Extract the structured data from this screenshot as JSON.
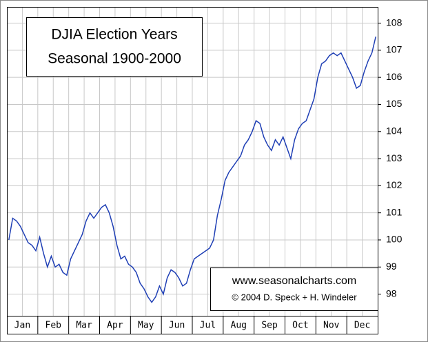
{
  "chart_data": {
    "type": "line",
    "title": [
      "DJIA Election Years",
      "Seasonal 1900-2000"
    ],
    "annotations": [
      "www.seasonalcharts.com",
      "© 2004 D. Speck + H. Windeler"
    ],
    "categories": [
      "Jan",
      null,
      null,
      null,
      null,
      null,
      null,
      null,
      "Feb",
      null,
      null,
      null,
      null,
      null,
      null,
      null,
      "Mar",
      null,
      null,
      null,
      null,
      null,
      null,
      null,
      "Apr",
      null,
      null,
      null,
      null,
      null,
      null,
      null,
      "May",
      null,
      null,
      null,
      null,
      null,
      null,
      null,
      "Jun",
      null,
      null,
      null,
      null,
      null,
      null,
      null,
      "Jul",
      null,
      null,
      null,
      null,
      null,
      null,
      null,
      "Aug",
      null,
      null,
      null,
      null,
      null,
      null,
      null,
      "Sep",
      null,
      null,
      null,
      null,
      null,
      null,
      null,
      "Oct",
      null,
      null,
      null,
      null,
      null,
      null,
      null,
      "Nov",
      null,
      null,
      null,
      null,
      null,
      null,
      null,
      "Dec",
      null,
      null,
      null,
      null,
      null,
      null,
      null
    ],
    "series": [
      {
        "name": "DJIA",
        "color": "#1f3fb5",
        "values": [
          100.0,
          100.8,
          100.7,
          100.5,
          100.2,
          99.9,
          99.8,
          99.6,
          100.1,
          99.5,
          99.0,
          99.4,
          99.0,
          99.1,
          98.8,
          98.7,
          99.3,
          99.6,
          99.9,
          100.2,
          100.7,
          101.0,
          100.8,
          101.0,
          101.2,
          101.3,
          101.0,
          100.5,
          99.8,
          99.3,
          99.4,
          99.1,
          99.0,
          98.8,
          98.4,
          98.2,
          97.9,
          97.7,
          97.9,
          98.3,
          98.0,
          98.6,
          98.9,
          98.8,
          98.6,
          98.3,
          98.4,
          98.9,
          99.3,
          99.4,
          99.5,
          99.6,
          99.7,
          100.0,
          100.9,
          101.5,
          102.2,
          102.5,
          102.7,
          102.9,
          103.1,
          103.5,
          103.7,
          104.0,
          104.4,
          104.3,
          103.8,
          103.5,
          103.3,
          103.7,
          103.5,
          103.8,
          103.4,
          103.0,
          103.7,
          104.1,
          104.3,
          104.4,
          104.8,
          105.2,
          106.0,
          106.5,
          106.6,
          106.8,
          106.9,
          106.8,
          106.9,
          106.6,
          106.3,
          106.0,
          105.6,
          105.7,
          106.2,
          106.6,
          106.9,
          107.5
        ]
      }
    ],
    "ylim": [
      97.2,
      108.6
    ],
    "yticks": [
      98,
      99,
      100,
      101,
      102,
      103,
      104,
      105,
      106,
      107,
      108
    ],
    "grid": true
  }
}
